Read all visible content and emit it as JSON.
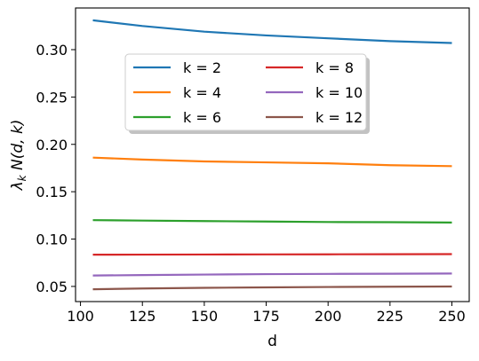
{
  "chart_data": {
    "type": "line",
    "title": "",
    "xlabel": "d",
    "ylabel": "λ_k N(d, k)",
    "xlim": [
      98,
      257
    ],
    "ylim": [
      0.034,
      0.344
    ],
    "x_ticks": [
      100,
      125,
      150,
      175,
      200,
      225,
      250
    ],
    "x_tick_labels": [
      "100",
      "125",
      "150",
      "175",
      "200",
      "225",
      "250"
    ],
    "y_ticks": [
      0.05,
      0.1,
      0.15,
      0.2,
      0.25,
      0.3
    ],
    "y_tick_labels": [
      "0.05",
      "0.10",
      "0.15",
      "0.20",
      "0.25",
      "0.30"
    ],
    "grid": false,
    "legend": {
      "position": "upper-center",
      "columns": 2,
      "frame": "shadow"
    },
    "series": [
      {
        "name": "k = 2",
        "color": "#1f77b4",
        "x": [
          105,
          125,
          150,
          175,
          200,
          225,
          250
        ],
        "values": [
          0.331,
          0.325,
          0.319,
          0.315,
          0.312,
          0.309,
          0.307
        ]
      },
      {
        "name": "k = 4",
        "color": "#ff7f0e",
        "x": [
          105,
          125,
          150,
          175,
          200,
          225,
          250
        ],
        "values": [
          0.186,
          0.184,
          0.182,
          0.181,
          0.18,
          0.178,
          0.177
        ]
      },
      {
        "name": "k = 6",
        "color": "#2ca02c",
        "x": [
          105,
          125,
          150,
          175,
          200,
          225,
          250
        ],
        "values": [
          0.12,
          0.1195,
          0.119,
          0.1185,
          0.118,
          0.1178,
          0.1175
        ]
      },
      {
        "name": "k = 8",
        "color": "#d62728",
        "x": [
          105,
          125,
          150,
          175,
          200,
          225,
          250
        ],
        "values": [
          0.0835,
          0.0836,
          0.0837,
          0.0838,
          0.0839,
          0.084,
          0.0841
        ]
      },
      {
        "name": "k = 10",
        "color": "#9467bd",
        "x": [
          105,
          125,
          150,
          175,
          200,
          225,
          250
        ],
        "values": [
          0.0615,
          0.062,
          0.0625,
          0.063,
          0.0632,
          0.0634,
          0.0636
        ]
      },
      {
        "name": "k = 12",
        "color": "#8c564b",
        "x": [
          105,
          125,
          150,
          175,
          200,
          225,
          250
        ],
        "values": [
          0.047,
          0.0478,
          0.0485,
          0.049,
          0.0494,
          0.0497,
          0.0499
        ]
      }
    ]
  }
}
